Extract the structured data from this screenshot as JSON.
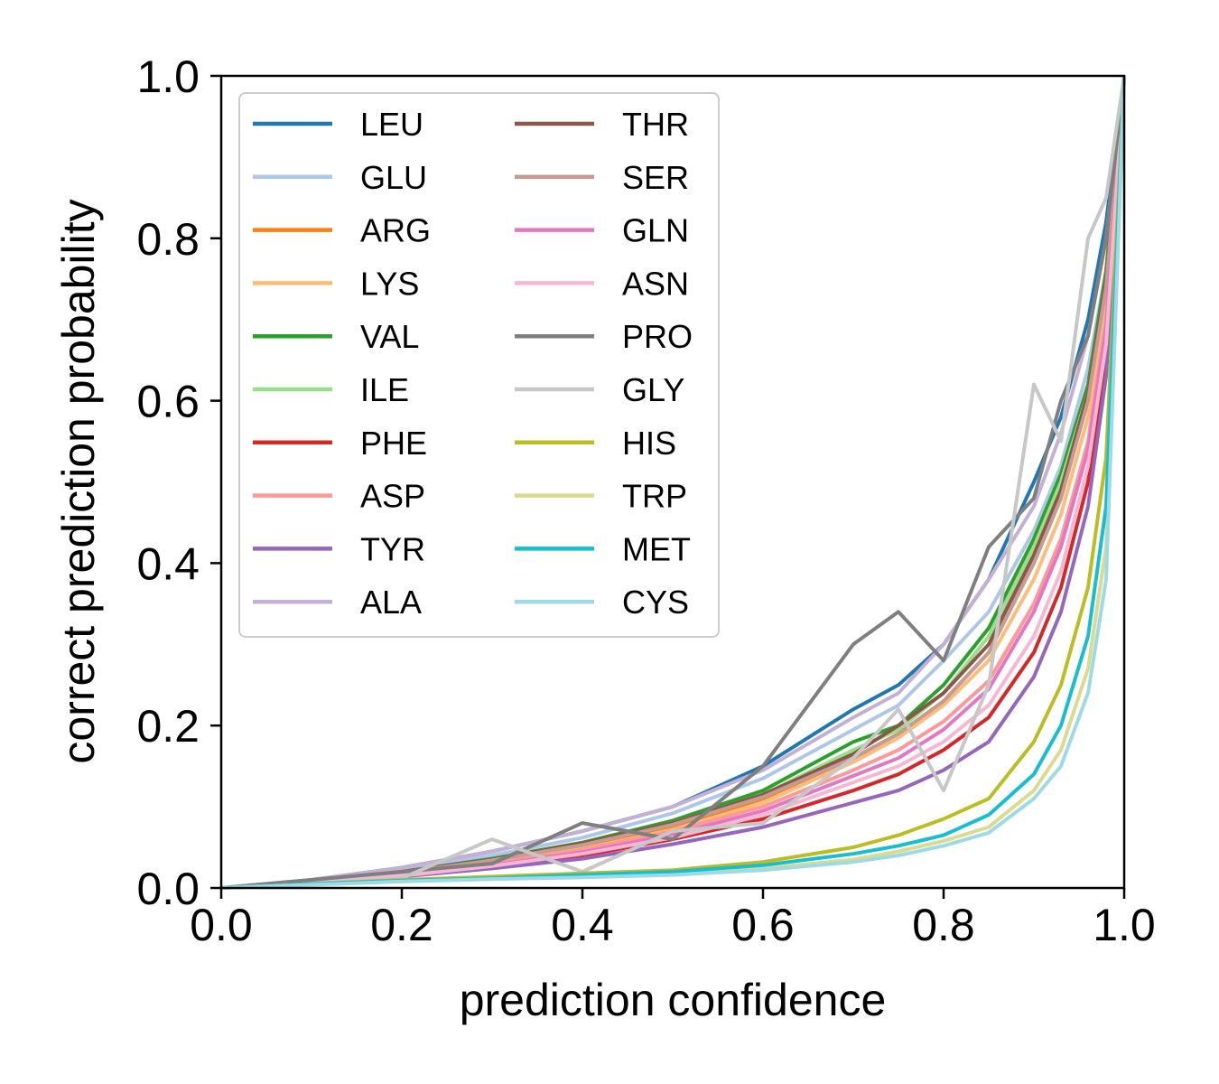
{
  "chart_data": {
    "type": "line",
    "title": "",
    "xlabel": "prediction confidence",
    "ylabel": "correct prediction probability",
    "xlim": [
      0.0,
      1.0
    ],
    "ylim": [
      0.0,
      1.0
    ],
    "xticks": [
      "0.0",
      "0.2",
      "0.4",
      "0.6",
      "0.8",
      "1.0"
    ],
    "yticks": [
      "0.0",
      "0.2",
      "0.4",
      "0.6",
      "0.8",
      "1.0"
    ],
    "grid": false,
    "legend_position": "top-left",
    "legend_columns": 2,
    "x": [
      0.0,
      0.1,
      0.2,
      0.3,
      0.4,
      0.5,
      0.6,
      0.7,
      0.75,
      0.8,
      0.85,
      0.9,
      0.93,
      0.96,
      0.98,
      1.0
    ],
    "series": [
      {
        "name": "LEU",
        "color": "#1f77b4",
        "values": [
          0.0,
          0.01,
          0.025,
          0.045,
          0.07,
          0.1,
          0.15,
          0.22,
          0.25,
          0.3,
          0.38,
          0.5,
          0.58,
          0.7,
          0.82,
          1.0
        ]
      },
      {
        "name": "GLU",
        "color": "#aec7e8",
        "values": [
          0.0,
          0.009,
          0.022,
          0.04,
          0.062,
          0.092,
          0.135,
          0.195,
          0.225,
          0.28,
          0.34,
          0.44,
          0.52,
          0.64,
          0.76,
          1.0
        ]
      },
      {
        "name": "ARG",
        "color": "#ff7f0e",
        "values": [
          0.0,
          0.008,
          0.018,
          0.032,
          0.05,
          0.075,
          0.11,
          0.16,
          0.19,
          0.23,
          0.29,
          0.4,
          0.48,
          0.6,
          0.74,
          1.0
        ]
      },
      {
        "name": "LYS",
        "color": "#ffbb78",
        "values": [
          0.0,
          0.008,
          0.017,
          0.03,
          0.048,
          0.072,
          0.105,
          0.155,
          0.185,
          0.225,
          0.28,
          0.38,
          0.46,
          0.58,
          0.72,
          1.0
        ]
      },
      {
        "name": "VAL",
        "color": "#2ca02c",
        "values": [
          0.0,
          0.009,
          0.02,
          0.036,
          0.056,
          0.083,
          0.12,
          0.18,
          0.2,
          0.25,
          0.32,
          0.43,
          0.51,
          0.62,
          0.76,
          1.0
        ]
      },
      {
        "name": "ILE",
        "color": "#98df8a",
        "values": [
          0.0,
          0.009,
          0.019,
          0.034,
          0.053,
          0.08,
          0.115,
          0.17,
          0.195,
          0.24,
          0.31,
          0.42,
          0.5,
          0.61,
          0.75,
          1.0
        ]
      },
      {
        "name": "PHE",
        "color": "#d62728",
        "values": [
          0.0,
          0.007,
          0.015,
          0.026,
          0.04,
          0.06,
          0.085,
          0.12,
          0.14,
          0.17,
          0.21,
          0.29,
          0.37,
          0.5,
          0.65,
          1.0
        ]
      },
      {
        "name": "ASP",
        "color": "#ff9896",
        "values": [
          0.0,
          0.008,
          0.017,
          0.03,
          0.047,
          0.07,
          0.1,
          0.145,
          0.17,
          0.205,
          0.255,
          0.35,
          0.43,
          0.55,
          0.7,
          1.0
        ]
      },
      {
        "name": "TYR",
        "color": "#9467bd",
        "values": [
          0.0,
          0.006,
          0.014,
          0.024,
          0.036,
          0.054,
          0.075,
          0.105,
          0.12,
          0.145,
          0.18,
          0.26,
          0.34,
          0.47,
          0.63,
          1.0
        ]
      },
      {
        "name": "ALA",
        "color": "#c5b0d5",
        "values": [
          0.0,
          0.01,
          0.025,
          0.045,
          0.07,
          0.1,
          0.145,
          0.21,
          0.24,
          0.3,
          0.38,
          0.47,
          0.56,
          0.68,
          0.8,
          1.0
        ]
      },
      {
        "name": "THR",
        "color": "#8c564b",
        "values": [
          0.0,
          0.009,
          0.02,
          0.035,
          0.055,
          0.08,
          0.115,
          0.165,
          0.2,
          0.24,
          0.3,
          0.41,
          0.49,
          0.61,
          0.75,
          1.0
        ]
      },
      {
        "name": "SER",
        "color": "#c49c94",
        "values": [
          0.0,
          0.009,
          0.019,
          0.034,
          0.053,
          0.078,
          0.112,
          0.16,
          0.19,
          0.23,
          0.29,
          0.4,
          0.48,
          0.6,
          0.74,
          1.0
        ]
      },
      {
        "name": "GLN",
        "color": "#e377c2",
        "values": [
          0.0,
          0.008,
          0.016,
          0.028,
          0.044,
          0.066,
          0.095,
          0.138,
          0.16,
          0.195,
          0.245,
          0.34,
          0.42,
          0.54,
          0.69,
          1.0
        ]
      },
      {
        "name": "ASN",
        "color": "#f7b6d2",
        "values": [
          0.0,
          0.007,
          0.015,
          0.027,
          0.042,
          0.062,
          0.09,
          0.13,
          0.15,
          0.18,
          0.225,
          0.31,
          0.39,
          0.52,
          0.67,
          1.0
        ]
      },
      {
        "name": "PRO",
        "color": "#7f7f7f",
        "values": [
          0.0,
          0.01,
          0.02,
          0.03,
          0.08,
          0.06,
          0.15,
          0.3,
          0.34,
          0.28,
          0.42,
          0.48,
          0.6,
          0.68,
          0.8,
          1.0
        ]
      },
      {
        "name": "GLY",
        "color": "#c7c7c7",
        "values": [
          0.0,
          0.005,
          0.012,
          0.06,
          0.02,
          0.07,
          0.08,
          0.16,
          0.22,
          0.12,
          0.25,
          0.62,
          0.55,
          0.8,
          0.85,
          1.0
        ]
      },
      {
        "name": "HIS",
        "color": "#bcbd22",
        "values": [
          0.0,
          0.005,
          0.01,
          0.014,
          0.018,
          0.022,
          0.032,
          0.05,
          0.065,
          0.085,
          0.11,
          0.18,
          0.25,
          0.37,
          0.53,
          1.0
        ]
      },
      {
        "name": "TRP",
        "color": "#dbdb8d",
        "values": [
          0.0,
          0.004,
          0.008,
          0.011,
          0.014,
          0.018,
          0.024,
          0.035,
          0.045,
          0.058,
          0.075,
          0.12,
          0.17,
          0.27,
          0.42,
          1.0
        ]
      },
      {
        "name": "MET",
        "color": "#17becf",
        "values": [
          0.0,
          0.005,
          0.009,
          0.012,
          0.016,
          0.02,
          0.028,
          0.042,
          0.052,
          0.065,
          0.09,
          0.14,
          0.2,
          0.31,
          0.47,
          1.0
        ]
      },
      {
        "name": "CYS",
        "color": "#9edae5",
        "values": [
          0.0,
          0.004,
          0.008,
          0.011,
          0.013,
          0.016,
          0.022,
          0.032,
          0.04,
          0.052,
          0.068,
          0.11,
          0.15,
          0.24,
          0.38,
          1.0
        ]
      }
    ]
  }
}
